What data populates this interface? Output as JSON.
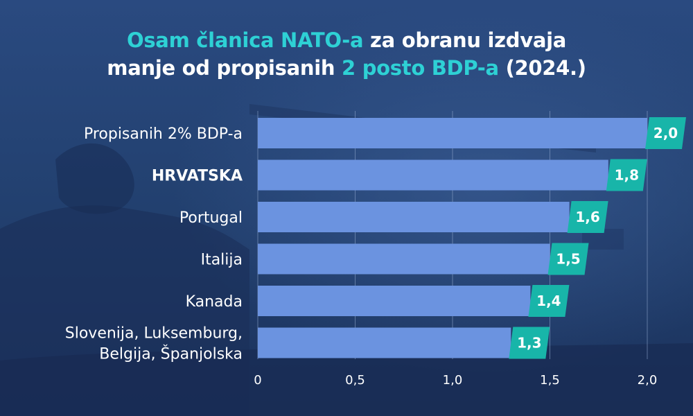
{
  "title": {
    "line1": [
      {
        "text": "Osam članica NATO-a",
        "highlight": true
      },
      {
        "text": " za obranu  izdvaja",
        "highlight": false
      }
    ],
    "line2": [
      {
        "text": "manje od propisanih ",
        "highlight": false
      },
      {
        "text": "2 posto BDP-a",
        "highlight": true
      },
      {
        "text": " (2024.)",
        "highlight": false
      }
    ]
  },
  "colors": {
    "background": "#1d3461",
    "bar": "#6b93e0",
    "label_box": "#18b5a9",
    "highlight_text": "#2ed1d5",
    "text": "#ffffff"
  },
  "chart_data": {
    "type": "bar",
    "orientation": "horizontal",
    "categories": [
      [
        "Propisanih 2% BDP-a"
      ],
      [
        "HRVATSKA"
      ],
      [
        "Portugal"
      ],
      [
        "Italija"
      ],
      [
        "Kanada"
      ],
      [
        "Slovenija, Luksemburg,",
        "Belgija, Španjolska"
      ]
    ],
    "bold_category_index": 1,
    "values": [
      2.0,
      1.8,
      1.6,
      1.5,
      1.4,
      1.3
    ],
    "value_labels": [
      "2,0",
      "1,8",
      "1,6",
      "1,5",
      "1,4",
      "1,3"
    ],
    "xlim": [
      0,
      2.0
    ],
    "xticks": [
      0,
      0.5,
      1.0,
      1.5,
      2.0
    ],
    "xtick_labels": [
      "0",
      "0,5",
      "1,0",
      "1,5",
      "2,0"
    ],
    "vertical_gridlines": true
  }
}
